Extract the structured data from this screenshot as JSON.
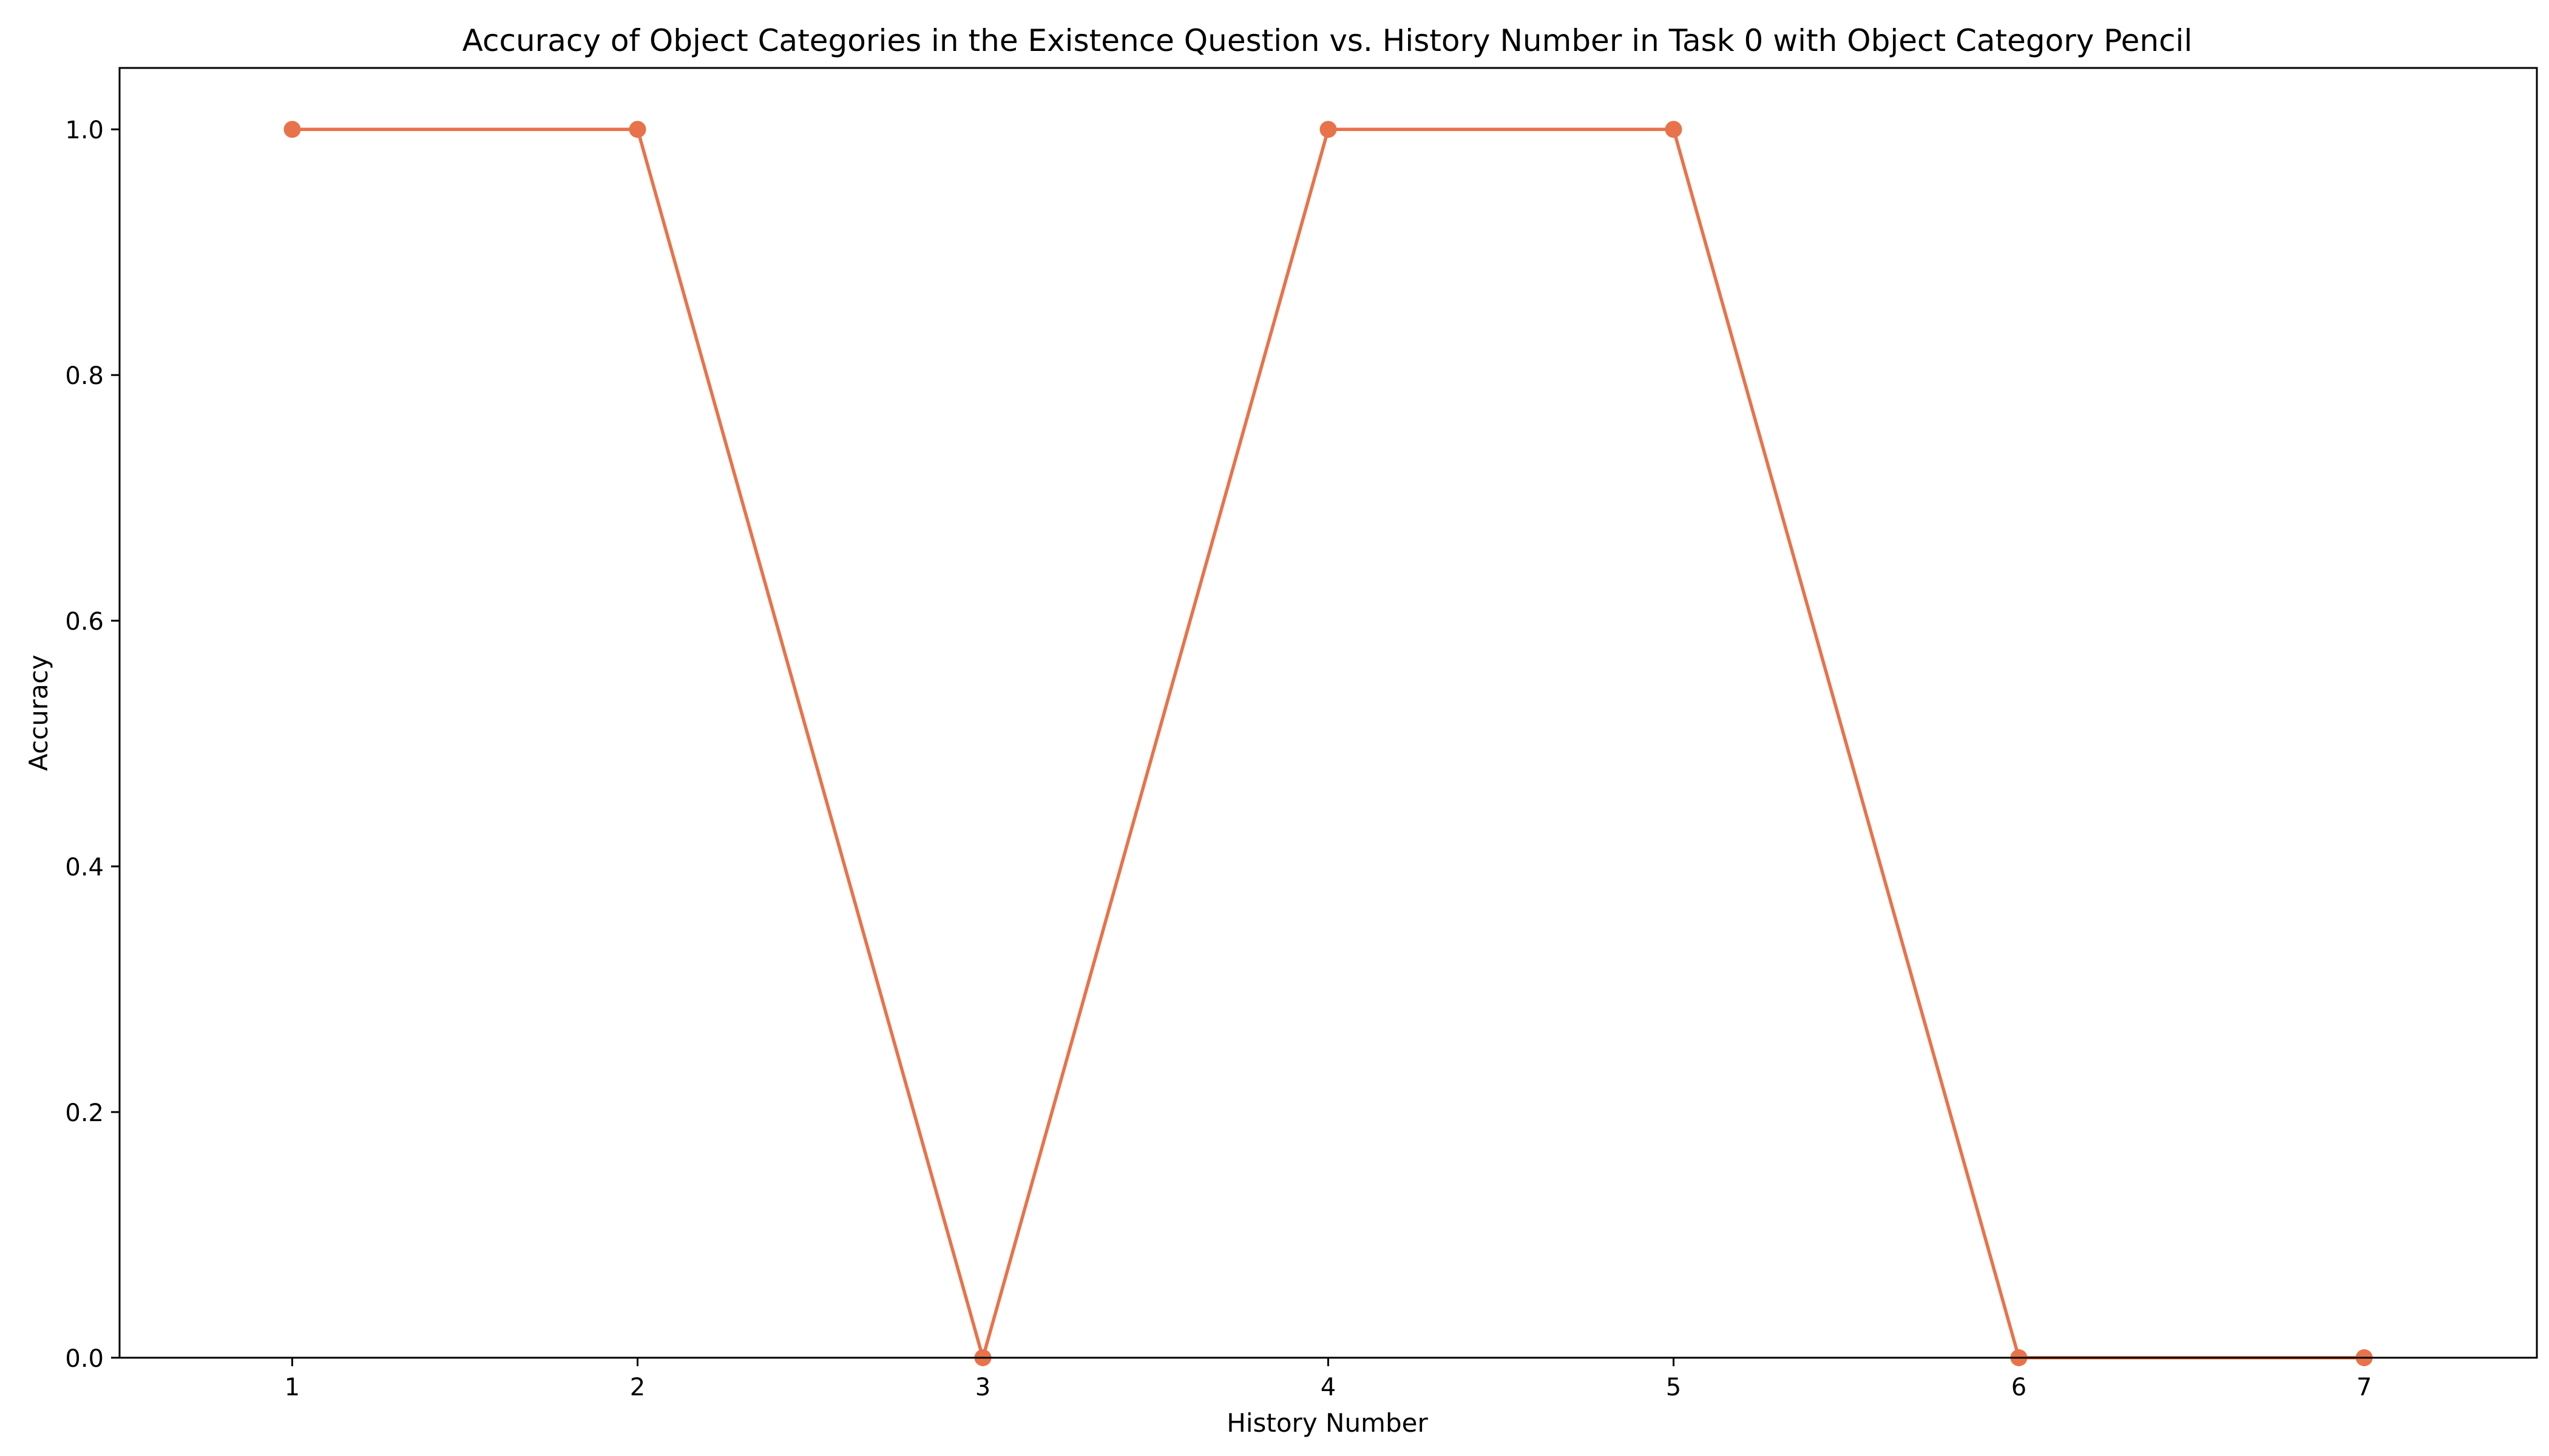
{
  "chart_data": {
    "type": "line",
    "title": "Accuracy of Object Categories in the Existence Question vs. History Number in Task 0 with Object Category Pencil",
    "xlabel": "History Number",
    "ylabel": "Accuracy",
    "x": [
      1,
      2,
      3,
      4,
      5,
      6,
      7
    ],
    "x_tick_labels": [
      "1",
      "2",
      "3",
      "4",
      "5",
      "6",
      "7"
    ],
    "y_tick_labels": [
      "0.0",
      "0.2",
      "0.4",
      "0.6",
      "0.8",
      "1.0"
    ],
    "xlim": [
      0.5,
      7.5
    ],
    "ylim": [
      0,
      1.05
    ],
    "grid": false,
    "series": [
      {
        "values": [
          1.0,
          1.0,
          0.0,
          1.0,
          1.0,
          0.0,
          0.0
        ],
        "color": "#e8734a",
        "marker": "circle"
      }
    ]
  }
}
